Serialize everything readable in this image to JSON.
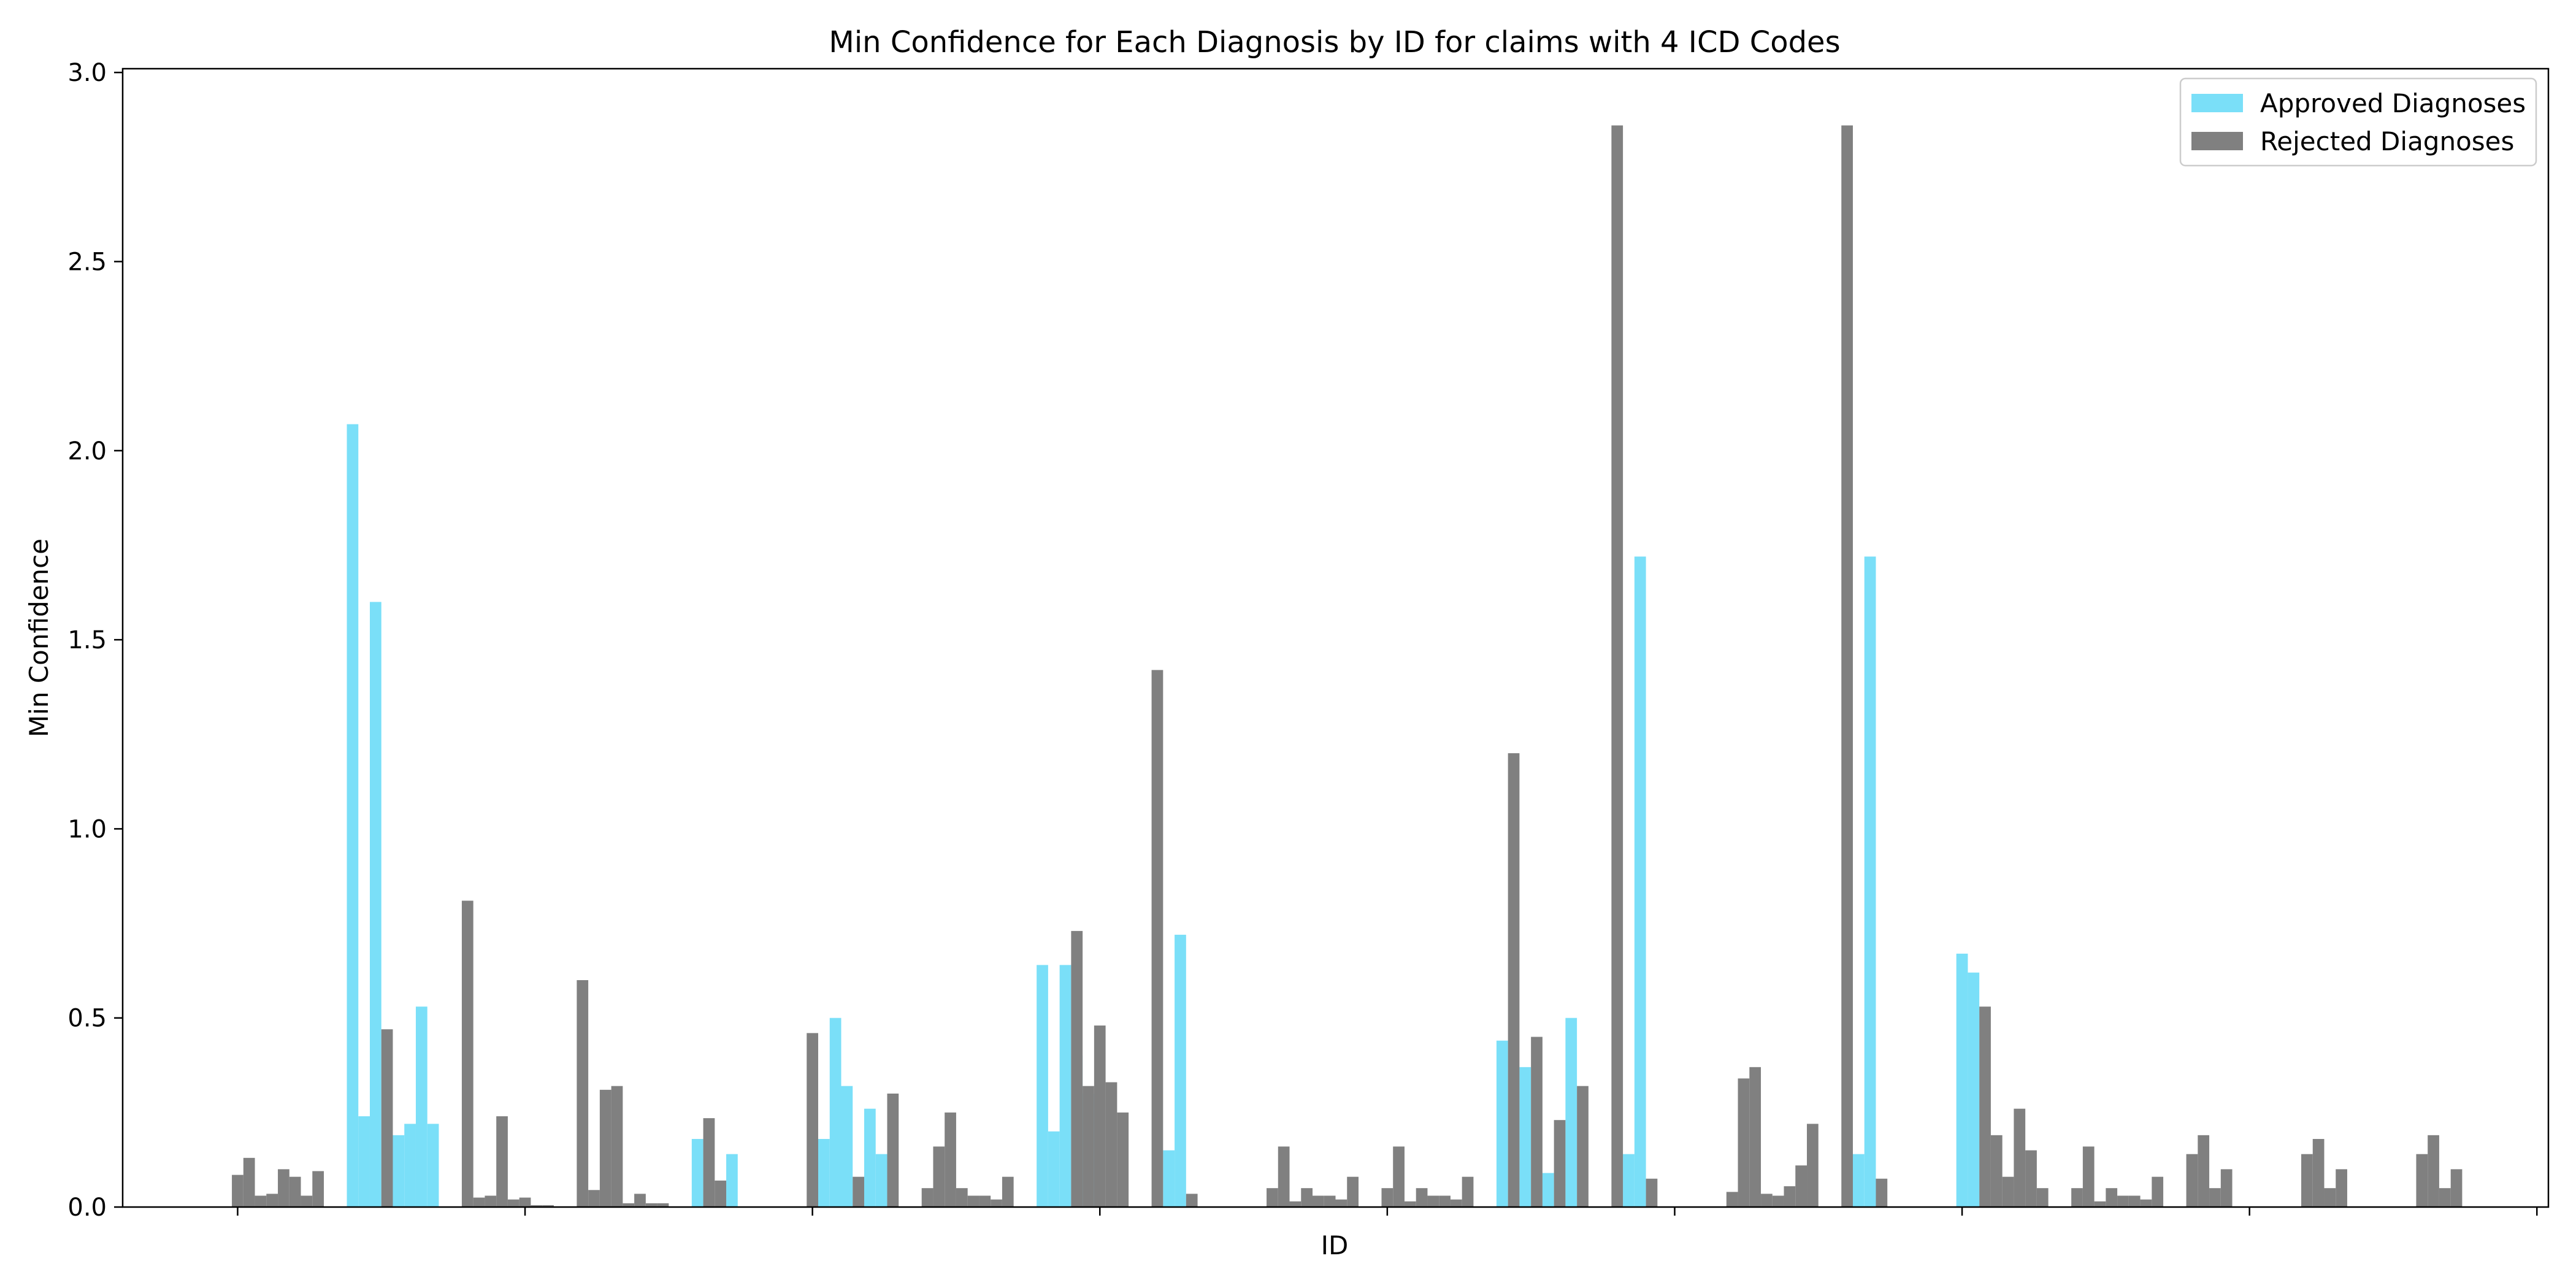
{
  "chart_data": {
    "type": "bar",
    "title": "Min Confidence for Each Diagnosis by ID for claims with 4 ICD Codes",
    "xlabel": "ID",
    "ylabel": "Min Confidence",
    "ylim": [
      0,
      3.01
    ],
    "yticks": [
      "0.0",
      "0.5",
      "1.0",
      "1.5",
      "2.0",
      "2.5",
      "3.0"
    ],
    "x_range": [
      -1.0,
      20.1
    ],
    "xticks": [
      0,
      2.5,
      5,
      7.5,
      10,
      12.5,
      15,
      17.5,
      20
    ],
    "bar_width": 0.1,
    "grid": false,
    "legend_position": "top-right",
    "series": [
      {
        "name": "Approved Diagnoses",
        "color": "#7adff8",
        "points": [
          {
            "x": 1.0,
            "y": 2.07
          },
          {
            "x": 1.1,
            "y": 0.24
          },
          {
            "x": 1.2,
            "y": 1.6
          },
          {
            "x": 1.4,
            "y": 0.19
          },
          {
            "x": 1.5,
            "y": 0.22
          },
          {
            "x": 1.6,
            "y": 0.53
          },
          {
            "x": 1.7,
            "y": 0.22
          },
          {
            "x": 4.0,
            "y": 0.18
          },
          {
            "x": 4.3,
            "y": 0.14
          },
          {
            "x": 5.1,
            "y": 0.18
          },
          {
            "x": 5.2,
            "y": 0.5
          },
          {
            "x": 5.3,
            "y": 0.32
          },
          {
            "x": 5.5,
            "y": 0.26
          },
          {
            "x": 5.6,
            "y": 0.14
          },
          {
            "x": 7.0,
            "y": 0.64
          },
          {
            "x": 7.1,
            "y": 0.2
          },
          {
            "x": 7.2,
            "y": 0.64
          },
          {
            "x": 7.3,
            "y": 0.4
          },
          {
            "x": 7.4,
            "y": 0.3
          },
          {
            "x": 8.1,
            "y": 0.15
          },
          {
            "x": 8.2,
            "y": 0.72
          },
          {
            "x": 11.0,
            "y": 0.44
          },
          {
            "x": 11.2,
            "y": 0.37
          },
          {
            "x": 11.4,
            "y": 0.09
          },
          {
            "x": 11.6,
            "y": 0.5
          },
          {
            "x": 12.1,
            "y": 0.14
          },
          {
            "x": 12.2,
            "y": 1.72
          },
          {
            "x": 14.1,
            "y": 0.14
          },
          {
            "x": 14.2,
            "y": 1.72
          },
          {
            "x": 15.0,
            "y": 0.67
          },
          {
            "x": 15.1,
            "y": 0.62
          }
        ]
      },
      {
        "name": "Rejected Diagnoses",
        "color": "#808080",
        "points": [
          {
            "x": 0.0,
            "y": 0.085
          },
          {
            "x": 0.1,
            "y": 0.13
          },
          {
            "x": 0.2,
            "y": 0.03
          },
          {
            "x": 0.3,
            "y": 0.035
          },
          {
            "x": 0.4,
            "y": 0.1
          },
          {
            "x": 0.5,
            "y": 0.08
          },
          {
            "x": 0.6,
            "y": 0.03
          },
          {
            "x": 0.7,
            "y": 0.095
          },
          {
            "x": 1.3,
            "y": 0.47
          },
          {
            "x": 2.0,
            "y": 0.81
          },
          {
            "x": 2.1,
            "y": 0.025
          },
          {
            "x": 2.2,
            "y": 0.03
          },
          {
            "x": 2.3,
            "y": 0.24
          },
          {
            "x": 2.4,
            "y": 0.02
          },
          {
            "x": 2.5,
            "y": 0.025
          },
          {
            "x": 2.6,
            "y": 0.005
          },
          {
            "x": 2.7,
            "y": 0.005
          },
          {
            "x": 3.0,
            "y": 0.6
          },
          {
            "x": 3.1,
            "y": 0.045
          },
          {
            "x": 3.2,
            "y": 0.31
          },
          {
            "x": 3.3,
            "y": 0.32
          },
          {
            "x": 3.4,
            "y": 0.01
          },
          {
            "x": 3.5,
            "y": 0.035
          },
          {
            "x": 3.6,
            "y": 0.01
          },
          {
            "x": 3.7,
            "y": 0.01
          },
          {
            "x": 4.1,
            "y": 0.235
          },
          {
            "x": 4.2,
            "y": 0.07
          },
          {
            "x": 5.0,
            "y": 0.46
          },
          {
            "x": 5.4,
            "y": 0.08
          },
          {
            "x": 5.7,
            "y": 0.3
          },
          {
            "x": 6.0,
            "y": 0.05
          },
          {
            "x": 6.1,
            "y": 0.16
          },
          {
            "x": 6.2,
            "y": 0.25
          },
          {
            "x": 6.3,
            "y": 0.05
          },
          {
            "x": 6.4,
            "y": 0.03
          },
          {
            "x": 6.5,
            "y": 0.03
          },
          {
            "x": 6.6,
            "y": 0.02
          },
          {
            "x": 6.7,
            "y": 0.08
          },
          {
            "x": 7.3,
            "y": 0.73
          },
          {
            "x": 7.4,
            "y": 0.32
          },
          {
            "x": 7.5,
            "y": 0.48
          },
          {
            "x": 7.6,
            "y": 0.33
          },
          {
            "x": 7.7,
            "y": 0.25
          },
          {
            "x": 8.0,
            "y": 1.42
          },
          {
            "x": 8.3,
            "y": 0.035
          },
          {
            "x": 9.0,
            "y": 0.05
          },
          {
            "x": 9.1,
            "y": 0.16
          },
          {
            "x": 9.2,
            "y": 0.015
          },
          {
            "x": 9.3,
            "y": 0.05
          },
          {
            "x": 9.4,
            "y": 0.03
          },
          {
            "x": 9.5,
            "y": 0.03
          },
          {
            "x": 9.6,
            "y": 0.02
          },
          {
            "x": 9.7,
            "y": 0.08
          },
          {
            "x": 10.0,
            "y": 0.05
          },
          {
            "x": 10.1,
            "y": 0.16
          },
          {
            "x": 10.2,
            "y": 0.015
          },
          {
            "x": 10.3,
            "y": 0.05
          },
          {
            "x": 10.4,
            "y": 0.03
          },
          {
            "x": 10.5,
            "y": 0.03
          },
          {
            "x": 10.6,
            "y": 0.02
          },
          {
            "x": 10.7,
            "y": 0.08
          },
          {
            "x": 11.1,
            "y": 1.2
          },
          {
            "x": 11.3,
            "y": 0.45
          },
          {
            "x": 11.5,
            "y": 0.23
          },
          {
            "x": 11.7,
            "y": 0.32
          },
          {
            "x": 12.0,
            "y": 2.86
          },
          {
            "x": 12.3,
            "y": 0.075
          },
          {
            "x": 13.0,
            "y": 0.04
          },
          {
            "x": 13.1,
            "y": 0.34
          },
          {
            "x": 13.2,
            "y": 0.37
          },
          {
            "x": 13.3,
            "y": 0.035
          },
          {
            "x": 13.4,
            "y": 0.03
          },
          {
            "x": 13.5,
            "y": 0.055
          },
          {
            "x": 13.6,
            "y": 0.11
          },
          {
            "x": 13.7,
            "y": 0.22
          },
          {
            "x": 14.0,
            "y": 2.86
          },
          {
            "x": 14.3,
            "y": 0.075
          },
          {
            "x": 15.2,
            "y": 0.53
          },
          {
            "x": 15.3,
            "y": 0.19
          },
          {
            "x": 15.4,
            "y": 0.08
          },
          {
            "x": 15.5,
            "y": 0.26
          },
          {
            "x": 15.6,
            "y": 0.15
          },
          {
            "x": 15.7,
            "y": 0.05
          },
          {
            "x": 16.0,
            "y": 0.05
          },
          {
            "x": 16.1,
            "y": 0.16
          },
          {
            "x": 16.2,
            "y": 0.015
          },
          {
            "x": 16.3,
            "y": 0.05
          },
          {
            "x": 16.4,
            "y": 0.03
          },
          {
            "x": 16.5,
            "y": 0.03
          },
          {
            "x": 16.6,
            "y": 0.02
          },
          {
            "x": 16.7,
            "y": 0.08
          },
          {
            "x": 17.0,
            "y": 0.14
          },
          {
            "x": 17.1,
            "y": 0.19
          },
          {
            "x": 17.2,
            "y": 0.05
          },
          {
            "x": 17.3,
            "y": 0.1
          },
          {
            "x": 18.0,
            "y": 0.14
          },
          {
            "x": 18.1,
            "y": 0.18
          },
          {
            "x": 18.2,
            "y": 0.05
          },
          {
            "x": 18.3,
            "y": 0.1
          },
          {
            "x": 19.0,
            "y": 0.14
          },
          {
            "x": 19.1,
            "y": 0.19
          },
          {
            "x": 19.2,
            "y": 0.05
          },
          {
            "x": 19.3,
            "y": 0.1
          }
        ]
      }
    ]
  }
}
